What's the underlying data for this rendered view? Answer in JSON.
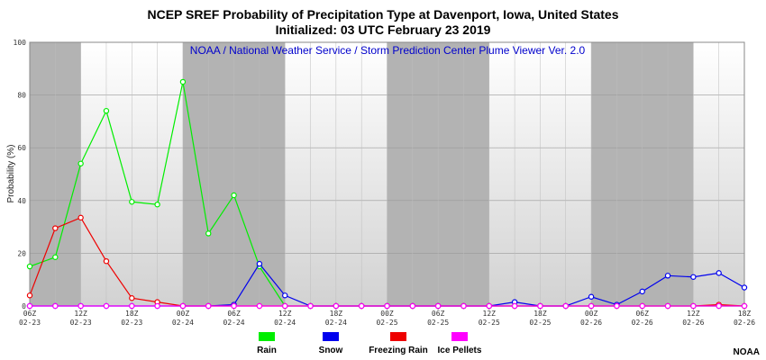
{
  "chart_data": {
    "type": "line",
    "title": "NCEP SREF Probability of Precipitation Type at Davenport, Iowa, United States",
    "subtitle": "Initialized: 03 UTC February 23 2019",
    "source_note": "NOAA / National Weather Service / Storm Prediction Center Plume Viewer Ver. 2.0",
    "credit": "NOAA",
    "ylabel": "Probability (%)",
    "ylim": [
      0,
      100
    ],
    "yticks": [
      0,
      20,
      40,
      60,
      80,
      100
    ],
    "grid": true,
    "legend_position": "bottom",
    "shaded_bands": [
      [
        0,
        2
      ],
      [
        6,
        10
      ],
      [
        14,
        18
      ],
      [
        22,
        26
      ]
    ],
    "x_ticks": [
      {
        "hour": "06Z",
        "date": "02-23"
      },
      {
        "hour": "12Z",
        "date": "02-23"
      },
      {
        "hour": "18Z",
        "date": "02-23"
      },
      {
        "hour": "00Z",
        "date": "02-24"
      },
      {
        "hour": "06Z",
        "date": "02-24"
      },
      {
        "hour": "12Z",
        "date": "02-24"
      },
      {
        "hour": "18Z",
        "date": "02-24"
      },
      {
        "hour": "00Z",
        "date": "02-25"
      },
      {
        "hour": "06Z",
        "date": "02-25"
      },
      {
        "hour": "12Z",
        "date": "02-25"
      },
      {
        "hour": "18Z",
        "date": "02-25"
      },
      {
        "hour": "00Z",
        "date": "02-26"
      },
      {
        "hour": "06Z",
        "date": "02-26"
      },
      {
        "hour": "12Z",
        "date": "02-26"
      },
      {
        "hour": "18Z",
        "date": "02-26"
      }
    ],
    "series": [
      {
        "name": "Rain",
        "color": "#00ee00",
        "values": [
          15,
          18.5,
          54,
          74,
          39.5,
          38.5,
          85,
          27.5,
          42,
          15,
          0,
          0,
          0,
          0,
          0,
          0,
          0,
          0,
          0,
          0,
          0,
          0,
          0,
          0,
          0,
          0,
          0,
          0,
          0
        ]
      },
      {
        "name": "Snow",
        "color": "#0000ee",
        "values": [
          0,
          0,
          0,
          0,
          0,
          0,
          0,
          0,
          0.5,
          16,
          4,
          0,
          0,
          0,
          0,
          0,
          0,
          0,
          0,
          1.5,
          0,
          0,
          3.5,
          0.5,
          5.5,
          11.5,
          11,
          12.5,
          7
        ]
      },
      {
        "name": "Freezing Rain",
        "color": "#ee0000",
        "values": [
          4,
          29.5,
          33.5,
          17,
          3,
          1.5,
          0,
          0,
          0,
          0,
          0,
          0,
          0,
          0,
          0,
          0,
          0,
          0,
          0,
          0,
          0,
          0,
          0,
          0,
          0,
          0,
          0,
          0.5,
          0
        ]
      },
      {
        "name": "Ice Pellets",
        "color": "#ff00ff",
        "values": [
          0,
          0,
          0,
          0,
          0,
          0,
          0,
          0,
          0,
          0,
          0,
          0,
          0,
          0,
          0,
          0,
          0,
          0,
          0,
          0,
          0,
          0,
          0,
          0,
          0,
          0,
          0,
          0,
          0
        ]
      }
    ]
  }
}
